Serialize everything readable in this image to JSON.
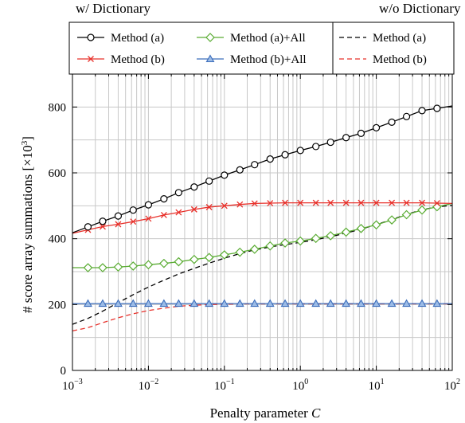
{
  "chart_data": {
    "type": "line",
    "xlabel": "Penalty parameter C",
    "xlabel_main": "Penalty parameter ",
    "xlabel_var": "C",
    "ylabel": "# score array summations [×10³]",
    "ylabel_prefix": "# score array summations [",
    "ylabel_times": "×10",
    "ylabel_exp": "3",
    "ylabel_suffix": "]",
    "xscale": "log",
    "xlim": [
      0.001,
      100
    ],
    "ylim": [
      0,
      900
    ],
    "grid": true,
    "x_ticks": [
      {
        "base": "10",
        "exp": "−3",
        "value": 0.001
      },
      {
        "base": "10",
        "exp": "−2",
        "value": 0.01
      },
      {
        "base": "10",
        "exp": "−1",
        "value": 0.1
      },
      {
        "base": "10",
        "exp": "0",
        "value": 1
      },
      {
        "base": "10",
        "exp": "1",
        "value": 10
      },
      {
        "base": "10",
        "exp": "2",
        "value": 100
      }
    ],
    "y_ticks": [
      "0",
      "200",
      "400",
      "600",
      "800"
    ],
    "y_tick_values": [
      0,
      200,
      400,
      600,
      800
    ],
    "legend_groups": [
      {
        "title": "w/ Dictionary",
        "placement": "top-left"
      },
      {
        "title": "w/o Dictionary",
        "placement": "top-right"
      }
    ],
    "series": [
      {
        "name": "Method (a)",
        "group": "w/ Dictionary",
        "color": "#000000",
        "marker": "circle",
        "dash": "solid",
        "x": [
          0.0016,
          0.0025,
          0.004,
          0.0063,
          0.01,
          0.016,
          0.025,
          0.04,
          0.063,
          0.1,
          0.16,
          0.25,
          0.4,
          0.63,
          1,
          1.6,
          2.5,
          4,
          6.3,
          10,
          16,
          25,
          40,
          63
        ],
        "y": [
          436,
          453,
          469,
          487,
          503,
          521,
          540,
          557,
          575,
          593,
          609,
          625,
          642,
          655,
          668,
          680,
          693,
          707,
          720,
          737,
          754,
          771,
          789,
          796
        ]
      },
      {
        "name": "Method (b)",
        "group": "w/ Dictionary",
        "color": "#e8302a",
        "marker": "x",
        "dash": "solid",
        "x": [
          0.0016,
          0.0025,
          0.004,
          0.0063,
          0.01,
          0.016,
          0.025,
          0.04,
          0.063,
          0.1,
          0.16,
          0.25,
          0.4,
          0.63,
          1,
          1.6,
          2.5,
          4,
          6.3,
          10,
          16,
          25,
          40,
          63
        ],
        "y": [
          427,
          437,
          444,
          452,
          461,
          472,
          480,
          489,
          496,
          500,
          504,
          507,
          508,
          509,
          509,
          509,
          509,
          509,
          509,
          509,
          509,
          509,
          509,
          508
        ]
      },
      {
        "name": "Method (a)+All",
        "group": "w/ Dictionary",
        "color": "#5aac33",
        "marker": "diamond",
        "dash": "solid",
        "x": [
          0.0016,
          0.0025,
          0.004,
          0.0063,
          0.01,
          0.016,
          0.025,
          0.04,
          0.063,
          0.1,
          0.16,
          0.25,
          0.4,
          0.63,
          1,
          1.6,
          2.5,
          4,
          6.3,
          10,
          16,
          25,
          40,
          63
        ],
        "y": [
          312,
          312,
          314,
          317,
          321,
          325,
          330,
          337,
          343,
          351,
          359,
          368,
          378,
          387,
          393,
          401,
          409,
          420,
          431,
          442,
          457,
          473,
          487,
          497
        ]
      },
      {
        "name": "Method (b)+All",
        "group": "w/ Dictionary",
        "color": "#3b6dbb",
        "marker": "triangle",
        "dash": "solid",
        "x": [
          0.0016,
          0.0025,
          0.004,
          0.0063,
          0.01,
          0.016,
          0.025,
          0.04,
          0.063,
          0.1,
          0.16,
          0.25,
          0.4,
          0.63,
          1,
          1.6,
          2.5,
          4,
          6.3,
          10,
          16,
          25,
          40,
          63
        ],
        "y": [
          203,
          203,
          203,
          203,
          203,
          203,
          203,
          203,
          203,
          203,
          203,
          203,
          203,
          203,
          203,
          203,
          203,
          203,
          203,
          203,
          203,
          203,
          203,
          203
        ]
      },
      {
        "name": "Method (a)",
        "group": "w/o Dictionary",
        "color": "#000000",
        "marker": "none",
        "dash": "dashed",
        "x": [
          0.001,
          0.0016,
          0.0025,
          0.004,
          0.0063,
          0.01,
          0.016,
          0.025,
          0.04,
          0.063,
          0.1,
          0.16,
          0.25,
          0.4,
          0.63,
          1,
          1.6,
          2.5,
          4,
          6.3,
          10,
          16,
          25,
          40,
          63,
          100
        ],
        "y": [
          140,
          158,
          180,
          206,
          230,
          253,
          274,
          293,
          310,
          326,
          341,
          355,
          366,
          375,
          382,
          389,
          397,
          406,
          417,
          429,
          443,
          458,
          474,
          488,
          497,
          501
        ]
      },
      {
        "name": "Method (b)",
        "group": "w/o Dictionary",
        "color": "#e8302a",
        "marker": "none",
        "dash": "dashed",
        "x": [
          0.001,
          0.0016,
          0.0025,
          0.004,
          0.0063,
          0.01,
          0.016,
          0.025,
          0.04,
          0.063,
          0.1,
          0.16,
          0.25,
          0.4,
          0.63,
          1,
          1.6,
          2.5,
          4,
          6.3,
          10,
          16,
          25,
          40,
          63,
          100
        ],
        "y": [
          120,
          130,
          145,
          160,
          172,
          182,
          189,
          195,
          198,
          200,
          201,
          202,
          202,
          202,
          202,
          202,
          202,
          202,
          202,
          202,
          202,
          202,
          202,
          202,
          202,
          202
        ]
      }
    ]
  }
}
